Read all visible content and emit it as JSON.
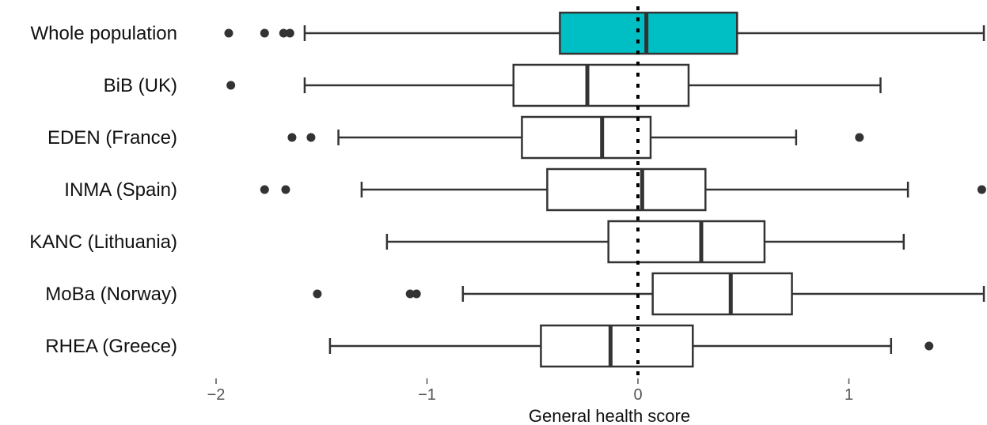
{
  "chart_data": {
    "type": "boxplot",
    "orientation": "horizontal",
    "xlabel": "General health score",
    "xlim": [
      -2.01,
      1.64
    ],
    "x_ticks": [
      {
        "value": -2,
        "label": "−2"
      },
      {
        "value": -1,
        "label": "−1"
      },
      {
        "value": 0,
        "label": "0"
      },
      {
        "value": 1,
        "label": "1"
      }
    ],
    "reference_line": {
      "x": 0,
      "style": "dotted"
    },
    "grid": false,
    "legend": "none",
    "categories": [
      "Whole population",
      "BiB (UK)",
      "EDEN (France)",
      "INMA (Spain)",
      "KANC (Lithuania)",
      "MoBa (Norway)",
      "RHEA (Greece)"
    ],
    "boxes": [
      {
        "category": "Whole population",
        "whisker_low": -1.58,
        "q1": -0.37,
        "median": 0.04,
        "q3": 0.47,
        "whisker_high": 1.64,
        "outliers": [
          -1.94,
          -1.77,
          -1.68,
          -1.65
        ],
        "fill": "#00bfc4"
      },
      {
        "category": "BiB (UK)",
        "whisker_low": -1.58,
        "q1": -0.59,
        "median": -0.24,
        "q3": 0.24,
        "whisker_high": 1.15,
        "outliers": [
          -1.93
        ],
        "fill": "#ffffff"
      },
      {
        "category": "EDEN (France)",
        "whisker_low": -1.42,
        "q1": -0.55,
        "median": -0.17,
        "q3": 0.06,
        "whisker_high": 0.75,
        "outliers": [
          -1.64,
          -1.55,
          1.05
        ],
        "fill": "#ffffff"
      },
      {
        "category": "INMA (Spain)",
        "whisker_low": -1.31,
        "q1": -0.43,
        "median": 0.02,
        "q3": 0.32,
        "whisker_high": 1.28,
        "outliers": [
          -1.77,
          -1.67,
          1.63
        ],
        "fill": "#ffffff"
      },
      {
        "category": "KANC (Lithuania)",
        "whisker_low": -1.19,
        "q1": -0.14,
        "median": 0.3,
        "q3": 0.6,
        "whisker_high": 1.26,
        "outliers": [],
        "fill": "#ffffff"
      },
      {
        "category": "MoBa (Norway)",
        "whisker_low": -0.83,
        "q1": 0.07,
        "median": 0.44,
        "q3": 0.73,
        "whisker_high": 1.64,
        "outliers": [
          -1.52,
          -1.08,
          -1.05
        ],
        "fill": "#ffffff"
      },
      {
        "category": "RHEA (Greece)",
        "whisker_low": -1.46,
        "q1": -0.46,
        "median": -0.13,
        "q3": 0.26,
        "whisker_high": 1.2,
        "outliers": [
          1.38
        ],
        "fill": "#ffffff"
      }
    ],
    "colors": {
      "stroke": "#333333",
      "highlight_fill": "#00bfc4",
      "default_fill": "#ffffff",
      "reference_line": "#000000"
    }
  }
}
